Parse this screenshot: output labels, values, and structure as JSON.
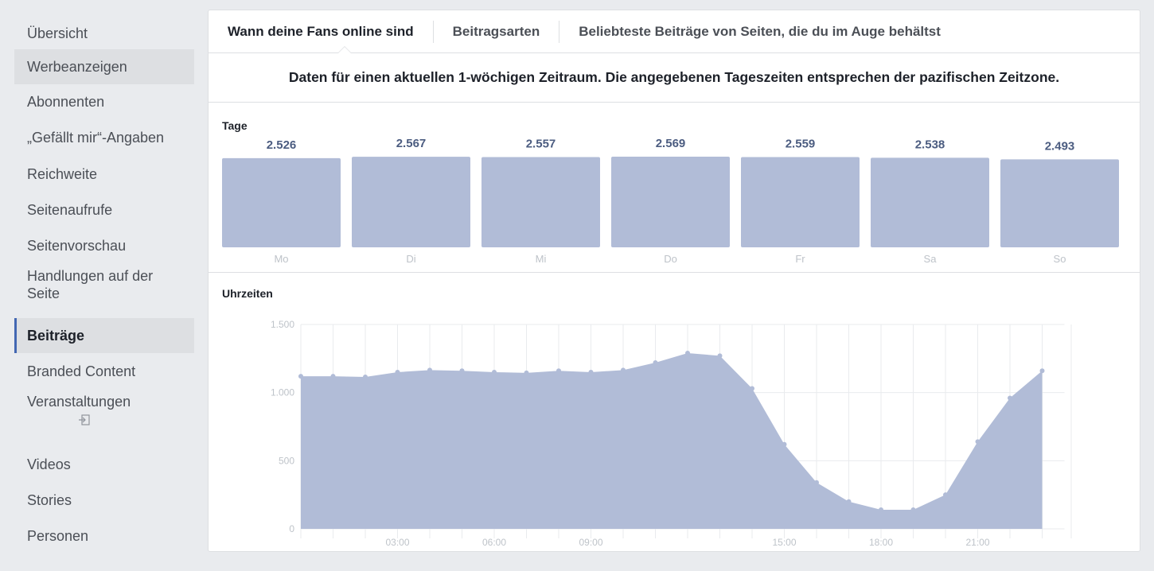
{
  "sidebar": {
    "items": [
      {
        "label": "Übersicht",
        "state": "normal"
      },
      {
        "label": "Werbeanzeigen",
        "state": "hover"
      },
      {
        "label": "Abonnenten",
        "state": "normal"
      },
      {
        "label": "„Gefällt mir“-Angaben",
        "state": "normal"
      },
      {
        "label": "Reichweite",
        "state": "normal"
      },
      {
        "label": "Seitenaufrufe",
        "state": "normal"
      },
      {
        "label": "Seitenvorschau",
        "state": "normal"
      },
      {
        "label": "Handlungen auf der Seite",
        "state": "normal"
      },
      {
        "label": "Beiträge",
        "state": "active"
      },
      {
        "label": "Branded Content",
        "state": "normal"
      },
      {
        "label": "Veranstaltungen",
        "state": "normal",
        "icon": "external-link-icon"
      },
      {
        "label": "Videos",
        "state": "normal"
      },
      {
        "label": "Stories",
        "state": "normal"
      },
      {
        "label": "Personen",
        "state": "normal"
      }
    ]
  },
  "tabs": [
    {
      "label": "Wann deine Fans online sind",
      "active": true
    },
    {
      "label": "Beitragsarten",
      "active": false
    },
    {
      "label": "Beliebteste Beiträge von Seiten, die du im Auge behältst",
      "active": false
    }
  ],
  "subheading": "Daten für einen aktuellen 1-wöchigen Zeitraum. Die angegebenen Tageszeiten entsprechen der pazifischen Zeitzone.",
  "colors": {
    "bar": "#b1bcd7",
    "value_label": "#4b5c80",
    "accent": "#4267b2"
  },
  "chart_data": [
    {
      "type": "bar",
      "title": "Tage",
      "categories": [
        "Mo",
        "Di",
        "Mi",
        "Do",
        "Fr",
        "Sa",
        "So"
      ],
      "values": [
        2526,
        2567,
        2557,
        2569,
        2559,
        2538,
        2493
      ],
      "value_labels": [
        "2.526",
        "2.567",
        "2.557",
        "2.569",
        "2.559",
        "2.538",
        "2.493"
      ]
    },
    {
      "type": "area",
      "title": "Uhrzeiten",
      "x": [
        0,
        1,
        2,
        3,
        4,
        5,
        6,
        7,
        8,
        9,
        10,
        11,
        12,
        13,
        14,
        15,
        16,
        17,
        18,
        19,
        20,
        21,
        22,
        23
      ],
      "values": [
        1120,
        1120,
        1115,
        1150,
        1165,
        1160,
        1150,
        1145,
        1160,
        1150,
        1165,
        1220,
        1290,
        1270,
        1030,
        620,
        340,
        200,
        140,
        140,
        250,
        640,
        960,
        1160
      ],
      "x_ticks": [
        {
          "x": 3,
          "label": "03:00"
        },
        {
          "x": 6,
          "label": "06:00"
        },
        {
          "x": 9,
          "label": "09:00"
        },
        {
          "x": 15,
          "label": "15:00"
        },
        {
          "x": 18,
          "label": "18:00"
        },
        {
          "x": 21,
          "label": "21:00"
        }
      ],
      "y_ticks": [
        {
          "y": 0,
          "label": "0"
        },
        {
          "y": 500,
          "label": "500"
        },
        {
          "y": 1000,
          "label": "1.000"
        },
        {
          "y": 1500,
          "label": "1.500"
        }
      ],
      "ylim": [
        0,
        1500
      ],
      "grid": true
    }
  ]
}
